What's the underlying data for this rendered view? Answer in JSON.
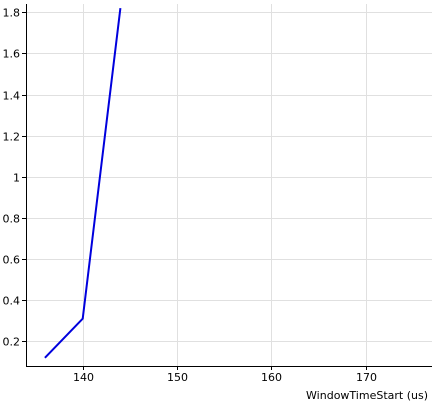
{
  "chart_data": {
    "type": "line",
    "title": "",
    "xlabel": "WindowTimeStart (us)",
    "ylabel": "",
    "xlim": [
      134,
      177
    ],
    "ylim": [
      0.08,
      1.84
    ],
    "xticks": [
      140,
      150,
      160,
      170
    ],
    "yticks": [
      0.2,
      0.4,
      0.6,
      0.8,
      1,
      1.2,
      1.4,
      1.6,
      1.8
    ],
    "xtick_labels": [
      "140",
      "150",
      "160",
      "170"
    ],
    "ytick_labels": [
      "0.2",
      "0.4",
      "0.6",
      "0.8",
      "1",
      "1.2",
      "1.4",
      "1.6",
      "1.8"
    ],
    "grid": true,
    "series": [
      {
        "x": [
          136,
          140,
          144
        ],
        "y": [
          0.12,
          0.31,
          1.82
        ]
      }
    ],
    "colors": {
      "line": "#0000dd",
      "grid": "#e0e0e0",
      "axis": "#000000"
    }
  }
}
